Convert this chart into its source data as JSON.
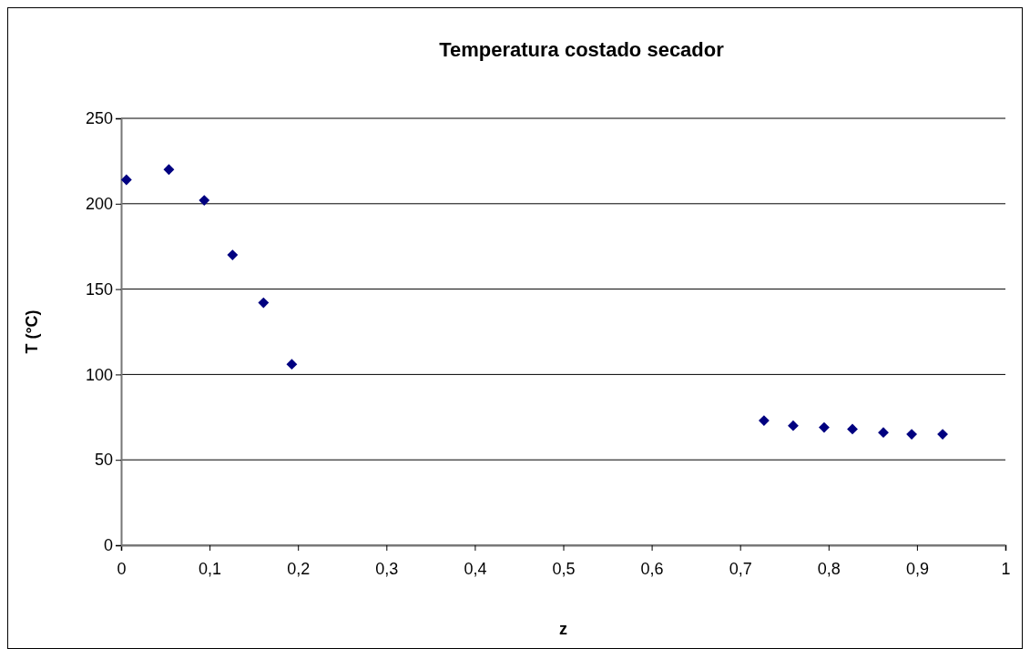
{
  "chart_data": {
    "type": "scatter",
    "title": "Temperatura costado secador",
    "xlabel": "z",
    "ylabel": "T (°C)",
    "marker": "diamond",
    "grid": "y",
    "xlim": [
      0,
      1
    ],
    "ylim": [
      0,
      250
    ],
    "xticks": [
      0,
      {
        "value": 0.1,
        "label": "0,1"
      },
      {
        "value": 0.2,
        "label": "0,2"
      },
      {
        "value": 0.3,
        "label": "0,3"
      },
      {
        "value": 0.4,
        "label": "0,4"
      },
      {
        "value": 0.5,
        "label": "0,5"
      },
      {
        "value": 0.6,
        "label": "0,6"
      },
      {
        "value": 0.7,
        "label": "0,7"
      },
      {
        "value": 0.8,
        "label": "0,8"
      },
      {
        "value": 0.9,
        "label": "0,9"
      },
      1
    ],
    "yticks": [
      0,
      50,
      100,
      150,
      200,
      250
    ],
    "series": [
      {
        "color": "#000080",
        "x": [
          0.006,
          0.054,
          0.094,
          0.126,
          0.161,
          0.193,
          0.727,
          0.76,
          0.795,
          0.827,
          0.862,
          0.894,
          0.929
        ],
        "values": [
          214,
          220,
          202,
          170,
          142,
          106,
          73,
          70,
          69,
          68,
          66,
          65,
          65
        ]
      }
    ]
  }
}
